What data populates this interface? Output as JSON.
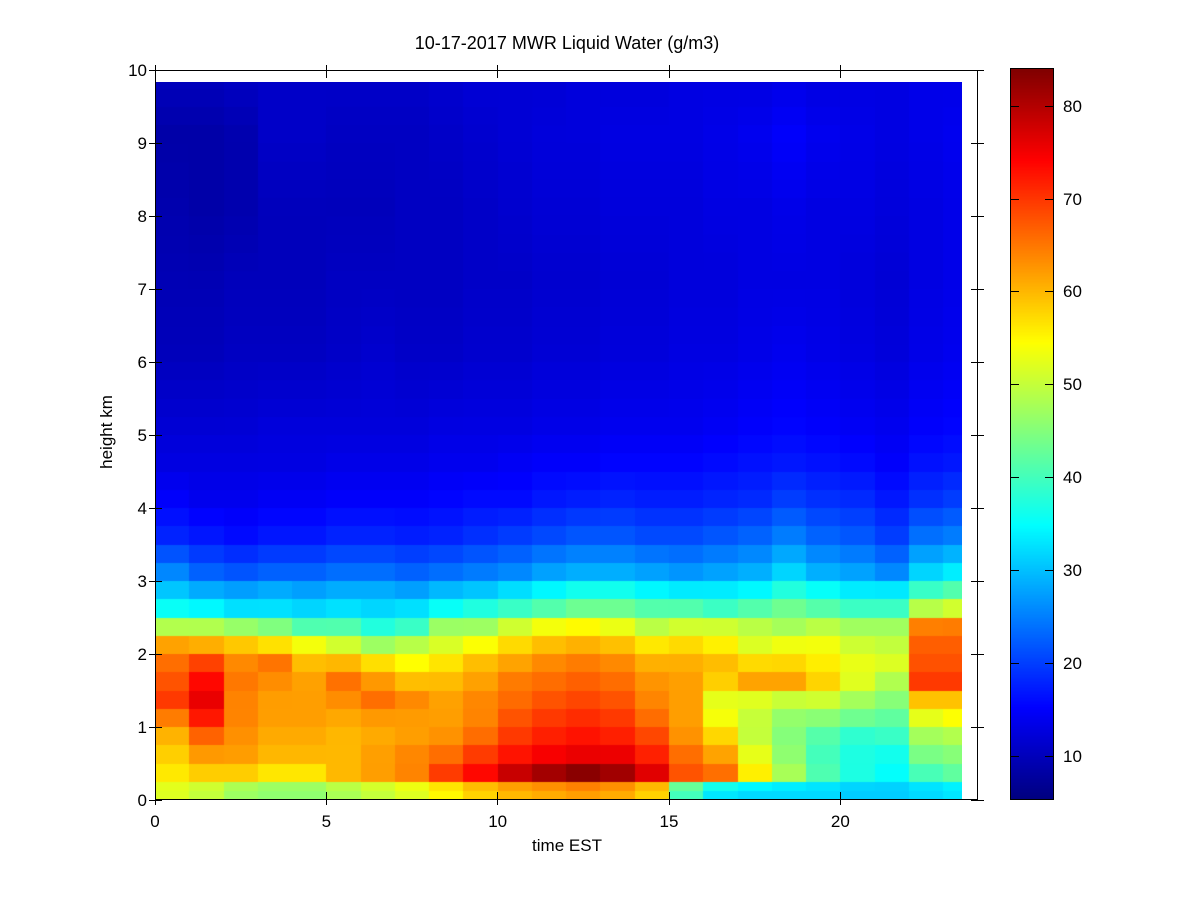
{
  "chart_data": {
    "type": "heatmap",
    "title": "10-17-2017 MWR Liquid Water (g/m3)",
    "xlabel": "time EST",
    "ylabel": "height km",
    "x_range": [
      0,
      24
    ],
    "y_range": [
      0,
      10
    ],
    "data_x_max": 23.55,
    "data_y_max": 9.84,
    "x_ticks": [
      0,
      5,
      10,
      15,
      20
    ],
    "y_ticks": [
      0,
      1,
      2,
      3,
      4,
      5,
      6,
      7,
      8,
      9,
      10
    ],
    "grid": false,
    "colorbar": {
      "colormap": "jet",
      "cmin": 5.4,
      "cmax": 84,
      "ticks": [
        10,
        20,
        30,
        40,
        50,
        60,
        70,
        80
      ],
      "position": "right"
    },
    "hours": [
      0,
      1,
      2,
      3,
      4,
      5,
      6,
      7,
      8,
      9,
      10,
      11,
      12,
      13,
      14,
      15,
      16,
      17,
      18,
      19,
      20,
      21,
      22,
      23
    ],
    "heights_km": [
      0.1,
      0.35,
      0.6,
      0.85,
      1.1,
      1.35,
      1.6,
      1.85,
      2.1,
      2.35,
      2.6,
      2.85,
      3.1,
      3.6,
      4.1,
      4.6,
      5.1,
      6.1,
      7.1,
      8.1,
      9.1,
      9.8
    ],
    "values": [
      [
        52,
        56,
        58,
        60,
        64,
        70,
        68,
        66,
        63,
        50,
        36,
        31,
        26,
        18,
        15,
        13,
        12,
        10,
        9.5,
        9,
        8.5,
        10
      ],
      [
        50,
        58,
        62,
        66,
        72,
        76,
        74,
        70,
        62,
        50,
        35,
        29,
        23,
        17,
        14,
        13,
        12,
        10,
        9.5,
        8.5,
        8.5,
        10
      ],
      [
        47,
        58,
        62,
        63,
        64,
        64,
        65,
        64,
        60,
        48,
        33,
        28,
        22,
        16,
        14,
        13,
        12,
        10.5,
        10,
        9,
        9,
        10.5
      ],
      [
        46,
        56,
        60,
        61,
        62,
        62,
        63,
        66,
        58,
        46,
        33,
        29,
        23,
        17,
        14.5,
        13,
        12.5,
        10.5,
        10,
        10,
        11,
        11
      ],
      [
        46,
        56,
        60,
        61,
        62,
        62,
        62,
        60,
        55,
        42,
        32,
        28,
        23,
        17,
        14.5,
        13,
        12.5,
        10.5,
        10,
        10,
        11,
        11
      ],
      [
        48,
        60,
        60,
        60,
        61,
        63,
        66,
        61,
        52,
        42,
        33,
        29,
        24,
        18,
        15,
        13.5,
        12.5,
        11,
        10.5,
        10,
        10.5,
        11
      ],
      [
        50,
        62,
        62,
        61,
        62,
        66,
        63,
        58,
        48,
        38,
        32,
        29,
        24,
        18,
        15,
        13.5,
        12.5,
        11.5,
        10.5,
        10,
        10.5,
        11
      ],
      [
        52,
        64,
        64,
        62,
        62,
        64,
        60,
        55,
        50,
        40,
        33,
        28,
        23,
        17.5,
        15,
        13.5,
        12.5,
        11,
        10.5,
        10.5,
        10.5,
        11
      ],
      [
        55,
        70,
        66,
        63,
        62,
        62,
        60,
        57,
        52,
        48,
        36,
        30,
        24,
        18,
        15.5,
        14,
        13,
        11,
        10.5,
        10.5,
        11,
        11.5
      ],
      [
        58,
        74,
        70,
        66,
        64,
        64,
        62,
        60,
        55,
        48,
        38,
        31,
        25,
        19,
        16,
        14,
        13,
        11.5,
        11,
        11,
        11.5,
        12
      ],
      [
        60,
        79,
        73,
        70,
        68,
        66,
        65,
        62,
        58,
        52,
        40,
        33,
        26,
        20,
        16,
        14.5,
        13,
        11.5,
        11,
        11.5,
        12,
        12
      ],
      [
        61,
        82,
        75,
        72,
        70,
        68,
        66,
        64,
        60,
        55,
        42,
        35,
        28,
        21,
        17,
        15,
        13.5,
        12,
        11.5,
        12,
        12.5,
        12
      ],
      [
        62,
        84,
        76,
        73,
        71,
        69,
        67,
        65,
        61,
        56,
        44,
        37,
        29,
        22,
        17.5,
        15,
        13.5,
        12,
        11.5,
        12,
        12.5,
        12.5
      ],
      [
        61,
        82,
        76,
        72,
        70,
        68,
        66,
        64,
        60,
        54,
        44,
        37,
        29,
        22,
        18,
        15.5,
        14,
        12.5,
        12,
        12.5,
        13,
        12.5
      ],
      [
        58,
        77,
        72,
        69,
        66,
        64,
        63,
        61,
        57,
        50,
        42,
        35,
        28,
        21,
        17.5,
        15.5,
        14,
        12.5,
        12,
        12.5,
        13,
        12.5
      ],
      [
        40,
        68,
        66,
        63,
        62,
        62,
        62,
        61,
        58,
        52,
        42,
        34,
        27,
        21,
        17.5,
        15.5,
        14,
        13,
        12.5,
        12.5,
        13,
        13
      ],
      [
        33,
        66,
        62,
        58,
        54,
        52,
        58,
        60,
        56,
        52,
        40,
        34,
        28,
        22,
        18,
        16,
        14.5,
        13,
        12.5,
        13,
        13.5,
        13
      ],
      [
        32,
        56,
        53,
        50,
        50,
        51,
        62,
        58,
        52,
        50,
        42,
        35,
        29,
        23,
        18.5,
        16.5,
        15,
        13.5,
        13,
        13,
        14,
        13
      ],
      [
        32,
        48,
        46,
        45,
        46,
        49,
        62,
        58,
        54,
        48,
        44,
        38,
        32,
        25,
        20,
        17,
        15.5,
        14,
        13,
        13.5,
        15,
        13.5
      ],
      [
        32,
        41,
        40,
        41,
        45,
        50,
        58,
        56,
        54,
        50,
        42,
        36,
        29,
        23,
        19,
        16.5,
        15,
        13.5,
        13,
        13,
        14,
        13
      ],
      [
        31,
        37,
        37,
        38,
        43,
        47,
        52,
        53,
        51,
        48,
        40,
        34,
        28,
        22,
        18.5,
        16,
        14.5,
        13,
        12.5,
        13,
        13.5,
        13
      ],
      [
        31,
        35,
        36,
        39,
        42,
        45,
        48,
        52,
        50,
        48,
        40,
        34,
        26,
        20,
        17,
        15,
        14,
        12.5,
        12,
        12.5,
        13,
        13
      ],
      [
        32,
        40,
        44,
        47,
        52,
        58,
        70,
        68,
        67,
        66,
        50,
        40,
        32,
        24,
        19,
        16.5,
        15,
        13.5,
        13,
        13,
        13.5,
        13.5
      ],
      [
        33,
        42,
        45,
        48,
        54,
        58,
        70,
        68,
        67,
        66,
        52,
        42,
        34,
        25,
        20,
        17,
        15.5,
        14,
        13.5,
        13.5,
        14,
        13.5
      ]
    ]
  }
}
